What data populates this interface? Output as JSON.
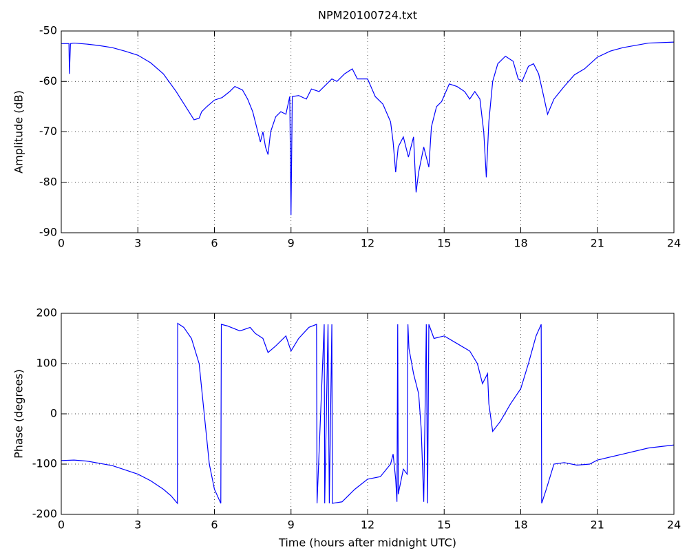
{
  "chart_data": [
    {
      "type": "line",
      "title": "NPM20100724.txt",
      "y_label": "Amplitude (dB)",
      "grid": true,
      "xlim": [
        0,
        24
      ],
      "xticks": [
        0,
        3,
        6,
        9,
        12,
        15,
        18,
        21,
        24
      ],
      "ylim": [
        -90,
        -50
      ],
      "yticks": [
        -90,
        -80,
        -70,
        -60,
        -50
      ],
      "series": [
        {
          "color": "#0000ff",
          "x": [
            0,
            0.3,
            0.32,
            0.36,
            0.5,
            1,
            1.5,
            2,
            2.5,
            3,
            3.5,
            4,
            4.5,
            5,
            5.2,
            5.4,
            5.5,
            5.7,
            6,
            6.3,
            6.6,
            6.8,
            7.1,
            7.3,
            7.5,
            7.6,
            7.8,
            7.9,
            8,
            8.1,
            8.2,
            8.4,
            8.6,
            8.8,
            8.95,
            9.0,
            9.05,
            9.3,
            9.6,
            9.8,
            10.1,
            10.4,
            10.6,
            10.8,
            11.1,
            11.4,
            11.6,
            12,
            12.3,
            12.6,
            12.9,
            13,
            13.1,
            13.2,
            13.4,
            13.6,
            13.8,
            13.9,
            14,
            14.2,
            14.4,
            14.5,
            14.7,
            14.9,
            15.2,
            15.5,
            15.8,
            16,
            16.2,
            16.4,
            16.55,
            16.65,
            16.75,
            16.9,
            17.1,
            17.4,
            17.7,
            17.9,
            18.05,
            18.3,
            18.5,
            18.7,
            18.9,
            19.05,
            19.3,
            19.7,
            20.1,
            20.5,
            21,
            21.5,
            22,
            23,
            24
          ],
          "values": [
            -52.5,
            -52.5,
            -58.5,
            -52.5,
            -52.4,
            -52.6,
            -52.9,
            -53.3,
            -54,
            -54.8,
            -56.3,
            -58.5,
            -62,
            -66,
            -67.6,
            -67.3,
            -66,
            -65,
            -63.7,
            -63.2,
            -62,
            -61,
            -61.7,
            -63.5,
            -66,
            -68,
            -72,
            -70,
            -73,
            -74.5,
            -70,
            -67,
            -66,
            -66.5,
            -63,
            -86.5,
            -63,
            -62.8,
            -63.5,
            -61.5,
            -62,
            -60.5,
            -59.5,
            -60,
            -58.5,
            -57.5,
            -59.5,
            -59.5,
            -63,
            -64.5,
            -68,
            -72,
            -78,
            -73,
            -71,
            -75,
            -71,
            -82,
            -78,
            -73,
            -77,
            -69,
            -65,
            -64,
            -60.5,
            -61,
            -62,
            -63.5,
            -62,
            -63.5,
            -70,
            -79,
            -68,
            -60,
            -56.5,
            -55,
            -56,
            -59.5,
            -60,
            -57,
            -56.5,
            -58.5,
            -63,
            -66.5,
            -63.5,
            -61,
            -58.7,
            -57.5,
            -55.2,
            -54,
            -53.3,
            -52.4,
            -52.2
          ]
        }
      ]
    },
    {
      "type": "line",
      "x_label": "Time (hours after midnight UTC)",
      "y_label": "Phase (degrees)",
      "grid": true,
      "xlim": [
        0,
        24
      ],
      "xticks": [
        0,
        3,
        6,
        9,
        12,
        15,
        18,
        21,
        24
      ],
      "ylim": [
        -200,
        200
      ],
      "yticks": [
        -200,
        -100,
        0,
        100,
        200
      ],
      "series": [
        {
          "color": "#0000ff",
          "x": [
            0,
            0.5,
            1,
            2,
            3,
            3.5,
            4,
            4.3,
            4.55,
            4.56,
            4.8,
            5.1,
            5.4,
            5.6,
            5.8,
            6.0,
            6.25,
            6.27,
            6.5,
            7,
            7.4,
            7.6,
            7.9,
            8.1,
            8.4,
            8.8,
            9.0,
            9.3,
            9.7,
            10,
            10.02,
            10.3,
            10.32,
            10.45,
            10.5,
            10.6,
            10.62,
            11,
            11.5,
            12,
            12.5,
            12.9,
            13.0,
            13.1,
            13.15,
            13.18,
            13.2,
            13.4,
            13.55,
            13.58,
            13.62,
            13.8,
            14,
            14.1,
            14.2,
            14.3,
            14.35,
            14.4,
            14.6,
            15,
            15.5,
            16,
            16.3,
            16.5,
            16.7,
            16.75,
            16.9,
            17.2,
            17.6,
            18,
            18.3,
            18.6,
            18.8,
            18.82,
            19,
            19.3,
            19.7,
            20.2,
            20.7,
            21,
            22,
            23,
            24
          ],
          "values": [
            -93,
            -92,
            -94,
            -103,
            -120,
            -133,
            -150,
            -163,
            -178,
            180,
            172,
            150,
            100,
            0,
            -100,
            -150,
            -178,
            178,
            175,
            165,
            172,
            160,
            150,
            122,
            135,
            155,
            125,
            150,
            172,
            178,
            -178,
            178,
            -178,
            178,
            -178,
            178,
            -178,
            -175,
            -150,
            -130,
            -125,
            -100,
            -80,
            -130,
            -175,
            178,
            -160,
            -110,
            -120,
            178,
            130,
            80,
            40,
            -30,
            -175,
            178,
            -178,
            178,
            150,
            155,
            140,
            125,
            100,
            60,
            80,
            20,
            -35,
            -15,
            20,
            50,
            100,
            155,
            178,
            -178,
            -150,
            -100,
            -97,
            -102,
            -100,
            -92,
            -80,
            -68,
            -62
          ]
        }
      ]
    }
  ]
}
